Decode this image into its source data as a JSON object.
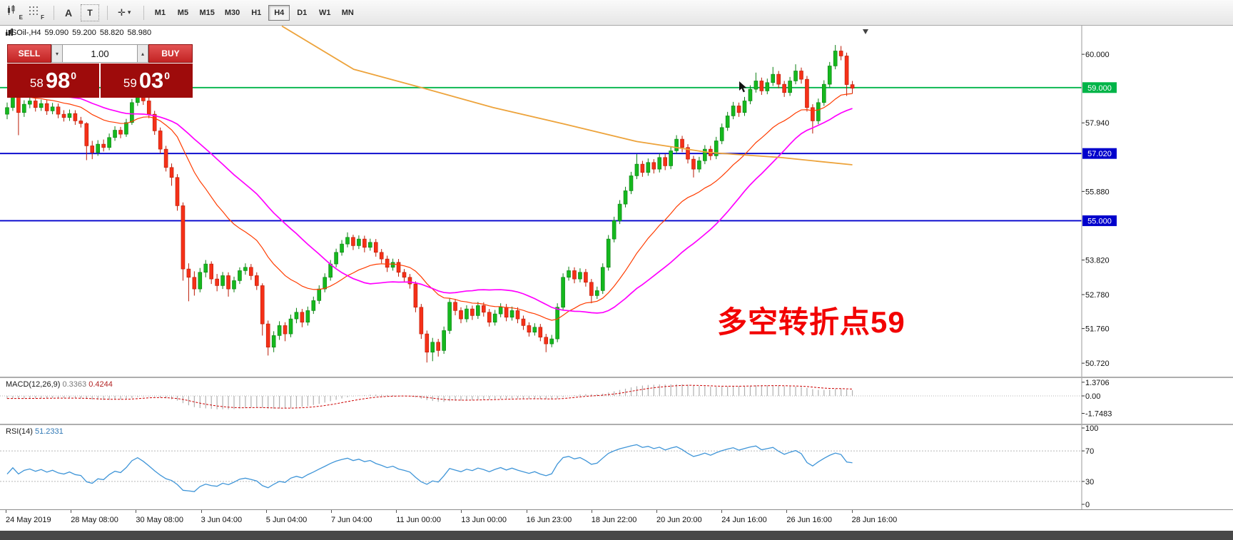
{
  "toolbar": {
    "tools": [
      {
        "name": "expert-chart",
        "badge": "E"
      },
      {
        "name": "grid",
        "badge": "F"
      },
      {
        "name": "label-tool",
        "glyph": "A"
      },
      {
        "name": "text-tool",
        "glyph": "T"
      },
      {
        "name": "crosshair-tool",
        "glyph": "✛",
        "caret": "▾"
      }
    ],
    "timeframes": [
      {
        "label": "M1",
        "active": false
      },
      {
        "label": "M5",
        "active": false
      },
      {
        "label": "M15",
        "active": false
      },
      {
        "label": "M30",
        "active": false
      },
      {
        "label": "H1",
        "active": false
      },
      {
        "label": "H4",
        "active": true
      },
      {
        "label": "D1",
        "active": false
      },
      {
        "label": "W1",
        "active": false
      },
      {
        "label": "MN",
        "active": false
      }
    ]
  },
  "chart": {
    "header": {
      "symbol": "USOil-,H4",
      "open": "59.090",
      "high": "59.200",
      "low": "58.820",
      "close": "58.980"
    },
    "trade_panel": {
      "sell_label": "SELL",
      "buy_label": "BUY",
      "volume": "1.00",
      "vol_down_glyph": "▾",
      "vol_up_glyph": "▴",
      "sell_price_small": "58",
      "sell_price_big": "98",
      "sell_price_sup": "0",
      "buy_price_small": "59",
      "buy_price_big": "03",
      "buy_price_sup": "0"
    },
    "annotation": "多空转折点59"
  },
  "macd": {
    "label": "MACD(12,26,9)",
    "value_main": "0.3363",
    "value_signal": "0.4244",
    "axis": [
      {
        "v": 1.3706,
        "label": "1.3706"
      },
      {
        "v": 0,
        "label": "0.00"
      },
      {
        "v": -1.7483,
        "label": "-1.7483"
      }
    ]
  },
  "rsi": {
    "label": "RSI(14)",
    "value": "51.2331",
    "axis": [
      {
        "v": 100,
        "label": "100"
      },
      {
        "v": 70,
        "label": "70"
      },
      {
        "v": 30,
        "label": "30"
      },
      {
        "v": 0,
        "label": "0"
      }
    ]
  },
  "chart_data": {
    "type": "candlestick",
    "symbol": "USOil-",
    "timeframe": "H4",
    "y_axis_ticks": [
      {
        "v": 60.0,
        "label": "60.000"
      },
      {
        "v": 57.94,
        "label": "57.940"
      },
      {
        "v": 55.88,
        "label": "55.880"
      },
      {
        "v": 53.82,
        "label": "53.820"
      },
      {
        "v": 52.78,
        "label": "52.780"
      },
      {
        "v": 51.76,
        "label": "51.760"
      },
      {
        "v": 50.72,
        "label": "50.720"
      }
    ],
    "hlines": [
      {
        "price": 59.0,
        "label": "59.000",
        "color": "#00b448"
      },
      {
        "price": 57.02,
        "label": "57.020",
        "color": "#0000cc"
      },
      {
        "price": 55.0,
        "label": "55.000",
        "color": "#0000cc"
      }
    ],
    "ma": {
      "fast": {
        "period": 21,
        "color": "#ff3c00"
      },
      "mid": {
        "period": 34,
        "color": "#ff00ff"
      },
      "slow": {
        "color": "#eda33b",
        "anchors": [
          [
            0.325,
            60.85
          ],
          [
            0.41,
            59.55
          ],
          [
            0.49,
            59.0
          ],
          [
            0.575,
            58.4
          ],
          [
            0.66,
            57.9
          ],
          [
            0.745,
            57.38
          ],
          [
            0.83,
            57.05
          ],
          [
            0.915,
            56.9
          ],
          [
            1.0,
            56.68
          ]
        ]
      }
    },
    "macd_settings": {
      "fast": 12,
      "slow": 26,
      "signal": 9,
      "current_main": 0.3363,
      "current_signal": 0.4244,
      "range": [
        -1.7483,
        1.3706
      ]
    },
    "rsi_settings": {
      "period": 14,
      "current": 51.2331,
      "levels": [
        30,
        70
      ],
      "range": [
        0,
        100
      ]
    },
    "x_labels": [
      "24 May 2019",
      "28 May 08:00",
      "30 May 08:00",
      "3 Jun 04:00",
      "5 Jun 04:00",
      "7 Jun 04:00",
      "11 Jun 00:00",
      "13 Jun 00:00",
      "16 Jun 23:00",
      "18 Jun 22:00",
      "20 Jun 20:00",
      "24 Jun 16:00",
      "26 Jun 16:00",
      "28 Jun 16:00"
    ],
    "candles": [
      [
        58.2,
        58.55,
        58.05,
        58.4
      ],
      [
        58.4,
        59.05,
        58.3,
        58.78
      ],
      [
        58.78,
        58.88,
        57.57,
        58.25
      ],
      [
        58.25,
        58.62,
        58.12,
        58.5
      ],
      [
        58.5,
        58.72,
        58.38,
        58.6
      ],
      [
        58.6,
        58.7,
        58.28,
        58.4
      ],
      [
        58.4,
        58.64,
        58.3,
        58.52
      ],
      [
        58.52,
        58.62,
        58.18,
        58.3
      ],
      [
        58.3,
        58.54,
        58.2,
        58.42
      ],
      [
        58.42,
        58.52,
        58.08,
        58.2
      ],
      [
        58.2,
        58.32,
        57.98,
        58.1
      ],
      [
        58.1,
        58.34,
        58.0,
        58.22
      ],
      [
        58.22,
        58.32,
        57.88,
        58.0
      ],
      [
        58.0,
        58.12,
        57.8,
        57.92
      ],
      [
        57.92,
        57.96,
        56.82,
        57.25
      ],
      [
        57.25,
        57.4,
        56.85,
        57.05
      ],
      [
        57.05,
        57.42,
        56.95,
        57.3
      ],
      [
        57.3,
        57.44,
        57.08,
        57.2
      ],
      [
        57.2,
        57.62,
        57.12,
        57.5
      ],
      [
        57.5,
        57.84,
        57.4,
        57.72
      ],
      [
        57.72,
        57.82,
        57.48,
        57.6
      ],
      [
        57.6,
        58.06,
        57.52,
        57.95
      ],
      [
        57.95,
        58.66,
        57.88,
        58.55
      ],
      [
        58.55,
        58.97,
        58.45,
        58.88
      ],
      [
        58.88,
        58.94,
        58.48,
        58.6
      ],
      [
        58.6,
        58.7,
        58.08,
        58.2
      ],
      [
        58.2,
        58.3,
        57.58,
        57.7
      ],
      [
        57.7,
        57.8,
        57.02,
        57.15
      ],
      [
        57.15,
        57.25,
        56.48,
        56.6
      ],
      [
        56.6,
        56.72,
        56.05,
        56.3
      ],
      [
        56.3,
        56.4,
        55.3,
        55.45
      ],
      [
        55.45,
        55.55,
        53.2,
        53.55
      ],
      [
        53.55,
        53.72,
        52.58,
        53.3
      ],
      [
        53.3,
        53.48,
        52.75,
        52.95
      ],
      [
        52.95,
        53.58,
        52.85,
        53.45
      ],
      [
        53.45,
        53.82,
        53.3,
        53.7
      ],
      [
        53.7,
        53.78,
        53.1,
        53.25
      ],
      [
        53.25,
        53.4,
        52.88,
        53.05
      ],
      [
        53.05,
        53.46,
        52.95,
        53.35
      ],
      [
        53.35,
        53.45,
        52.72,
        52.95
      ],
      [
        52.95,
        53.32,
        52.85,
        53.2
      ],
      [
        53.2,
        53.6,
        53.1,
        53.5
      ],
      [
        53.5,
        53.72,
        53.38,
        53.6
      ],
      [
        53.6,
        53.7,
        53.22,
        53.35
      ],
      [
        53.35,
        53.45,
        52.92,
        53.05
      ],
      [
        53.05,
        53.12,
        51.55,
        51.9
      ],
      [
        51.9,
        52.0,
        50.95,
        51.2
      ],
      [
        51.2,
        51.68,
        51.05,
        51.55
      ],
      [
        51.55,
        51.98,
        51.42,
        51.85
      ],
      [
        51.85,
        51.95,
        51.38,
        51.6
      ],
      [
        51.6,
        52.18,
        51.5,
        52.05
      ],
      [
        52.05,
        52.38,
        51.92,
        52.25
      ],
      [
        52.25,
        52.35,
        51.8,
        51.95
      ],
      [
        51.95,
        52.42,
        51.85,
        52.3
      ],
      [
        52.3,
        52.72,
        52.2,
        52.6
      ],
      [
        52.6,
        53.06,
        52.5,
        52.95
      ],
      [
        52.95,
        53.42,
        52.85,
        53.3
      ],
      [
        53.3,
        53.82,
        53.2,
        53.7
      ],
      [
        53.7,
        54.16,
        53.6,
        54.05
      ],
      [
        54.05,
        54.42,
        53.95,
        54.3
      ],
      [
        54.3,
        54.65,
        54.2,
        54.5
      ],
      [
        54.5,
        54.58,
        54.12,
        54.25
      ],
      [
        54.25,
        54.56,
        54.15,
        54.45
      ],
      [
        54.45,
        54.55,
        54.05,
        54.2
      ],
      [
        54.2,
        54.46,
        54.1,
        54.35
      ],
      [
        54.35,
        54.45,
        53.92,
        54.05
      ],
      [
        54.05,
        54.15,
        53.72,
        53.85
      ],
      [
        53.85,
        53.95,
        53.46,
        53.6
      ],
      [
        53.6,
        53.86,
        53.5,
        53.75
      ],
      [
        53.75,
        53.85,
        53.32,
        53.45
      ],
      [
        53.45,
        53.55,
        53.16,
        53.3
      ],
      [
        53.3,
        53.4,
        52.96,
        53.1
      ],
      [
        53.1,
        53.18,
        52.25,
        52.4
      ],
      [
        52.4,
        52.5,
        51.45,
        51.6
      ],
      [
        51.6,
        51.7,
        50.74,
        51.05
      ],
      [
        51.05,
        51.48,
        50.78,
        51.35
      ],
      [
        51.35,
        51.45,
        50.92,
        51.1
      ],
      [
        51.1,
        51.82,
        51.0,
        51.7
      ],
      [
        51.7,
        52.66,
        51.6,
        52.55
      ],
      [
        52.55,
        52.65,
        52.16,
        52.3
      ],
      [
        52.3,
        52.4,
        51.92,
        52.05
      ],
      [
        52.05,
        52.46,
        51.95,
        52.35
      ],
      [
        52.35,
        52.45,
        52.02,
        52.15
      ],
      [
        52.15,
        52.56,
        52.05,
        52.45
      ],
      [
        52.45,
        52.55,
        52.12,
        52.25
      ],
      [
        52.25,
        52.35,
        51.82,
        51.95
      ],
      [
        51.95,
        52.32,
        51.85,
        52.2
      ],
      [
        52.2,
        52.52,
        52.1,
        52.4
      ],
      [
        52.4,
        52.5,
        51.98,
        52.1
      ],
      [
        52.1,
        52.42,
        52.0,
        52.3
      ],
      [
        52.3,
        52.4,
        51.92,
        52.05
      ],
      [
        52.05,
        52.15,
        51.72,
        51.85
      ],
      [
        51.85,
        51.95,
        51.52,
        51.65
      ],
      [
        51.65,
        51.92,
        51.55,
        51.8
      ],
      [
        51.8,
        51.9,
        51.38,
        51.5
      ],
      [
        51.5,
        51.6,
        51.05,
        51.3
      ],
      [
        51.3,
        51.57,
        51.2,
        51.45
      ],
      [
        51.45,
        52.52,
        51.35,
        52.4
      ],
      [
        52.4,
        53.42,
        52.3,
        53.3
      ],
      [
        53.3,
        53.62,
        53.2,
        53.5
      ],
      [
        53.5,
        53.6,
        53.12,
        53.25
      ],
      [
        53.25,
        53.57,
        53.15,
        53.45
      ],
      [
        53.45,
        53.55,
        53.02,
        53.15
      ],
      [
        53.15,
        53.25,
        52.52,
        52.75
      ],
      [
        52.75,
        53.02,
        52.65,
        52.9
      ],
      [
        52.9,
        53.72,
        52.8,
        53.6
      ],
      [
        53.6,
        54.57,
        53.5,
        54.45
      ],
      [
        54.45,
        55.12,
        54.35,
        55.0
      ],
      [
        55.0,
        55.62,
        54.9,
        55.5
      ],
      [
        55.5,
        56.02,
        55.4,
        55.9
      ],
      [
        55.9,
        56.47,
        55.8,
        56.35
      ],
      [
        56.35,
        57.0,
        56.25,
        56.7
      ],
      [
        56.7,
        56.8,
        56.32,
        56.45
      ],
      [
        56.45,
        56.87,
        56.35,
        56.75
      ],
      [
        56.75,
        56.85,
        56.42,
        56.55
      ],
      [
        56.55,
        57.02,
        56.45,
        56.9
      ],
      [
        56.9,
        57.0,
        56.52,
        56.65
      ],
      [
        56.65,
        57.22,
        56.55,
        57.1
      ],
      [
        57.1,
        57.57,
        57.0,
        57.45
      ],
      [
        57.45,
        57.55,
        57.06,
        57.2
      ],
      [
        57.2,
        57.3,
        56.72,
        56.85
      ],
      [
        56.85,
        56.95,
        56.3,
        56.55
      ],
      [
        56.55,
        56.92,
        56.45,
        56.8
      ],
      [
        56.8,
        57.27,
        56.7,
        57.15
      ],
      [
        57.15,
        57.25,
        56.82,
        56.95
      ],
      [
        56.95,
        57.52,
        56.85,
        57.4
      ],
      [
        57.4,
        57.92,
        57.3,
        57.8
      ],
      [
        57.8,
        58.27,
        57.7,
        58.15
      ],
      [
        58.15,
        58.57,
        58.05,
        58.45
      ],
      [
        58.45,
        58.55,
        58.12,
        58.25
      ],
      [
        58.25,
        58.72,
        58.15,
        58.6
      ],
      [
        58.6,
        59.07,
        58.5,
        58.95
      ],
      [
        58.95,
        59.45,
        58.85,
        59.2
      ],
      [
        59.2,
        59.3,
        58.78,
        58.9
      ],
      [
        58.9,
        59.27,
        58.8,
        59.15
      ],
      [
        59.15,
        59.62,
        59.05,
        59.4
      ],
      [
        59.4,
        59.5,
        58.98,
        59.1
      ],
      [
        59.1,
        59.2,
        58.72,
        58.85
      ],
      [
        58.85,
        59.32,
        58.75,
        59.2
      ],
      [
        59.2,
        59.7,
        59.1,
        59.5
      ],
      [
        59.5,
        59.6,
        59.12,
        59.25
      ],
      [
        59.25,
        59.35,
        58.28,
        58.4
      ],
      [
        58.4,
        58.5,
        57.62,
        58.0
      ],
      [
        58.0,
        58.67,
        57.9,
        58.55
      ],
      [
        58.55,
        59.22,
        58.45,
        59.1
      ],
      [
        59.1,
        59.77,
        59.0,
        59.65
      ],
      [
        59.65,
        60.28,
        59.55,
        60.1
      ],
      [
        60.1,
        60.25,
        59.82,
        59.95
      ],
      [
        59.95,
        60.05,
        58.75,
        59.09
      ],
      [
        59.09,
        59.2,
        58.82,
        58.98
      ]
    ]
  }
}
